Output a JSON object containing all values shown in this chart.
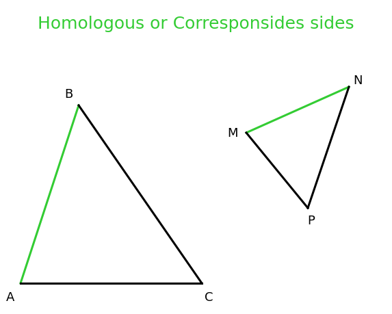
{
  "title": "Homologous or Corresponsides sides",
  "title_color": "#33cc33",
  "title_fontsize": 18,
  "background_color": "#ffffff",
  "triangle_ABC": {
    "A": [
      30,
      415
    ],
    "B": [
      115,
      155
    ],
    "C": [
      295,
      415
    ],
    "green_side": [
      "A",
      "B"
    ],
    "black_sides": [
      [
        "B",
        "C"
      ],
      [
        "A",
        "C"
      ]
    ],
    "labels": {
      "A": [
        15,
        435,
        "A"
      ],
      "B": [
        100,
        138,
        "B"
      ],
      "C": [
        305,
        435,
        "C"
      ]
    }
  },
  "triangle_MNP": {
    "M": [
      360,
      195
    ],
    "N": [
      510,
      128
    ],
    "P": [
      450,
      305
    ],
    "green_side": [
      "M",
      "N"
    ],
    "black_sides": [
      [
        "M",
        "P"
      ],
      [
        "N",
        "P"
      ]
    ],
    "labels": {
      "M": [
        340,
        195,
        "M"
      ],
      "N": [
        523,
        118,
        "N"
      ],
      "P": [
        455,
        323,
        "P"
      ]
    }
  },
  "line_width": 2.2,
  "green_color": "#33cc33",
  "black_color": "#000000",
  "label_fontsize": 13
}
